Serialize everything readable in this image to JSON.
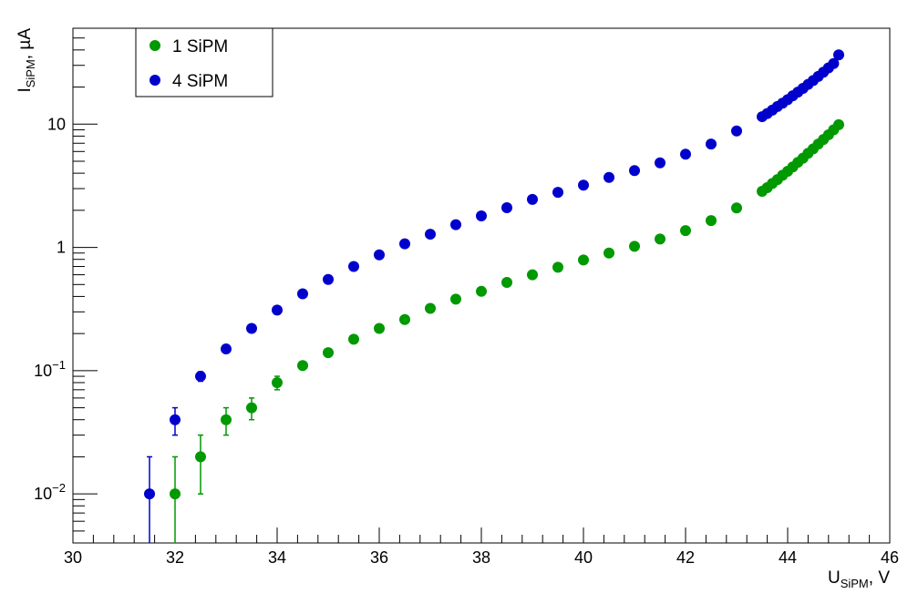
{
  "chart_data": {
    "type": "scatter",
    "xlabel": {
      "main": "U",
      "sub": "SiPM",
      "rest": ", V"
    },
    "ylabel": {
      "main": "I",
      "sub": "SiPM",
      "rest": ", µA"
    },
    "xlim": [
      30,
      46
    ],
    "ylim": [
      0.004,
      60
    ],
    "yscale": "log",
    "grid": false,
    "legend_position": "top-left",
    "x_ticks": [
      {
        "value": 30,
        "label": "30"
      },
      {
        "value": 32,
        "label": "32"
      },
      {
        "value": 34,
        "label": "34"
      },
      {
        "value": 36,
        "label": "36"
      },
      {
        "value": 38,
        "label": "38"
      },
      {
        "value": 40,
        "label": "40"
      },
      {
        "value": 42,
        "label": "42"
      },
      {
        "value": 44,
        "label": "44"
      },
      {
        "value": 46,
        "label": "46"
      }
    ],
    "y_ticks": [
      {
        "value": 0.01,
        "base": "10",
        "exp": "−2"
      },
      {
        "value": 0.1,
        "base": "10",
        "exp": "−1"
      },
      {
        "value": 1,
        "base": "1",
        "exp": ""
      },
      {
        "value": 10,
        "base": "10",
        "exp": ""
      }
    ],
    "series": [
      {
        "name": "1 SiPM",
        "color": "#009900",
        "x": [
          32,
          32.5,
          33,
          33.5,
          34,
          34.5,
          35,
          35.5,
          36,
          36.5,
          37,
          37.5,
          38,
          38.5,
          39,
          39.5,
          40,
          40.5,
          41,
          41.5,
          42,
          42.5,
          43,
          43.5,
          43.6,
          43.7,
          43.8,
          43.9,
          44,
          44.1,
          44.2,
          44.3,
          44.4,
          44.5,
          44.6,
          44.7,
          44.8,
          44.9,
          45
        ],
        "y": [
          0.01,
          0.02,
          0.04,
          0.05,
          0.08,
          0.11,
          0.14,
          0.18,
          0.22,
          0.26,
          0.32,
          0.38,
          0.44,
          0.52,
          0.6,
          0.69,
          0.79,
          0.9,
          1.02,
          1.17,
          1.37,
          1.65,
          2.09,
          2.85,
          3.05,
          3.3,
          3.55,
          3.85,
          4.15,
          4.5,
          4.9,
          5.3,
          5.8,
          6.3,
          6.9,
          7.5,
          8.2,
          9.0,
          9.9
        ],
        "err": [
          0.01,
          0.01,
          0.01,
          0.01,
          0.01,
          0.005,
          0,
          0,
          0,
          0,
          0,
          0,
          0,
          0,
          0,
          0,
          0,
          0,
          0,
          0,
          0,
          0,
          0,
          0,
          0,
          0,
          0,
          0,
          0,
          0,
          0,
          0,
          0,
          0,
          0,
          0,
          0,
          0,
          0
        ]
      },
      {
        "name": "4 SiPM",
        "color": "#0000cc",
        "x": [
          31.5,
          32,
          32.5,
          33,
          33.5,
          34,
          34.5,
          35,
          35.5,
          36,
          36.5,
          37,
          37.5,
          38,
          38.5,
          39,
          39.5,
          40,
          40.5,
          41,
          41.5,
          42,
          42.5,
          43,
          43.5,
          43.6,
          43.7,
          43.8,
          43.9,
          44,
          44.1,
          44.2,
          44.3,
          44.4,
          44.5,
          44.6,
          44.7,
          44.8,
          44.9,
          45
        ],
        "y": [
          0.01,
          0.04,
          0.09,
          0.15,
          0.22,
          0.31,
          0.42,
          0.55,
          0.7,
          0.87,
          1.07,
          1.28,
          1.53,
          1.8,
          2.1,
          2.45,
          2.8,
          3.2,
          3.7,
          4.2,
          4.85,
          5.7,
          6.9,
          8.8,
          11.5,
          12.2,
          13.0,
          13.9,
          14.8,
          15.8,
          17.0,
          18.2,
          19.5,
          21.0,
          22.6,
          24.4,
          26.4,
          28.6,
          31.0,
          36.5
        ],
        "err": [
          0.01,
          0.01,
          0.008,
          0,
          0,
          0,
          0,
          0,
          0,
          0,
          0,
          0,
          0,
          0,
          0,
          0,
          0,
          0,
          0,
          0,
          0,
          0,
          0,
          0,
          0,
          0,
          0,
          0,
          0,
          0,
          0,
          0,
          0,
          0,
          0,
          0,
          0,
          0,
          0,
          0
        ]
      }
    ]
  }
}
